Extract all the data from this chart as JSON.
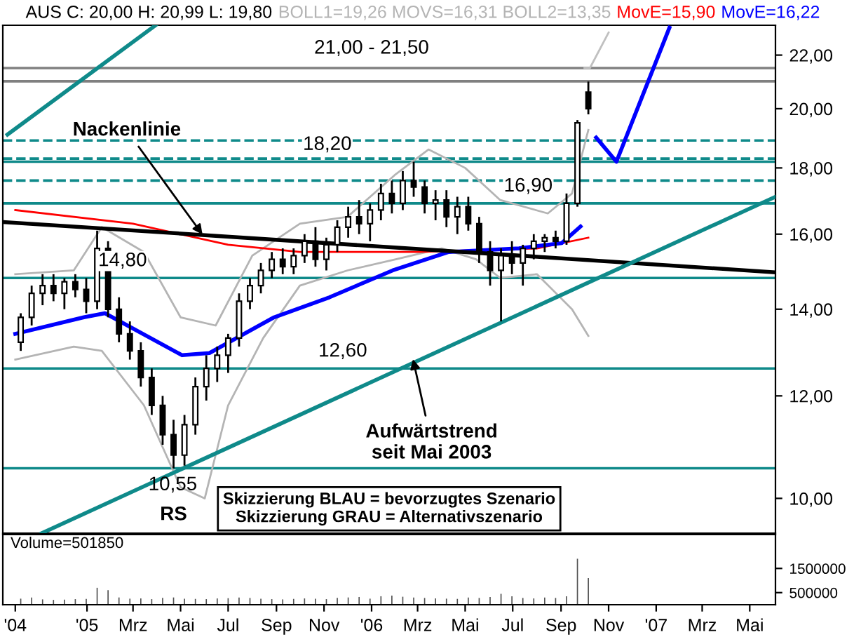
{
  "chart_data": [
    {
      "type": "candlestick",
      "log": "y",
      "legend": "top",
      "tick_labels": "y",
      "x": [
        "2004-10-08",
        "2004-10-22",
        "2004-11-05",
        "2004-11-19",
        "2004-12-03",
        "2004-12-17",
        "2004-12-31",
        "2005-01-14",
        "2005-01-28",
        "2005-02-11",
        "2005-02-25",
        "2005-03-11",
        "2005-03-25",
        "2005-04-08",
        "2005-04-22",
        "2005-05-06",
        "2005-05-20",
        "2005-06-03",
        "2005-06-17",
        "2005-07-01",
        "2005-07-15",
        "2005-07-29",
        "2005-08-12",
        "2005-08-26",
        "2005-09-09",
        "2005-09-23",
        "2005-10-07",
        "2005-10-21",
        "2005-11-04",
        "2005-11-18",
        "2005-12-02",
        "2005-12-16",
        "2005-12-30",
        "2006-01-13",
        "2006-01-27",
        "2006-02-10",
        "2006-02-24",
        "2006-03-10",
        "2006-03-24",
        "2006-04-07",
        "2006-04-21",
        "2006-05-05",
        "2006-05-19",
        "2006-06-02",
        "2006-06-16",
        "2006-06-30",
        "2006-07-14",
        "2006-07-28",
        "2006-08-11",
        "2006-08-25",
        "2006-09-08",
        "2006-09-22",
        "2006-10-06"
      ],
      "ohlc": [
        [
          13.2,
          13.9,
          13.0,
          13.8
        ],
        [
          13.8,
          14.6,
          13.6,
          14.4
        ],
        [
          14.4,
          14.9,
          14.1,
          14.6
        ],
        [
          14.6,
          14.9,
          14.2,
          14.4
        ],
        [
          14.4,
          14.8,
          14.0,
          14.7
        ],
        [
          14.7,
          14.9,
          14.3,
          14.5
        ],
        [
          14.5,
          14.8,
          13.9,
          14.2
        ],
        [
          14.2,
          16.1,
          14.0,
          15.6
        ],
        [
          15.6,
          15.8,
          13.8,
          14.0
        ],
        [
          14.0,
          14.3,
          13.2,
          13.4
        ],
        [
          13.4,
          13.7,
          12.8,
          13.0
        ],
        [
          13.0,
          13.2,
          12.2,
          12.4
        ],
        [
          12.4,
          12.6,
          11.6,
          11.8
        ],
        [
          11.8,
          12.0,
          11.0,
          11.2
        ],
        [
          11.2,
          11.5,
          10.55,
          10.8
        ],
        [
          10.8,
          11.6,
          10.6,
          11.4
        ],
        [
          11.4,
          12.4,
          11.2,
          12.2
        ],
        [
          12.2,
          12.9,
          11.9,
          12.6
        ],
        [
          12.6,
          13.1,
          12.3,
          12.9
        ],
        [
          12.9,
          13.4,
          12.5,
          13.3
        ],
        [
          13.3,
          14.4,
          13.1,
          14.2
        ],
        [
          14.2,
          14.8,
          14.0,
          14.6
        ],
        [
          14.6,
          15.2,
          14.4,
          15.0
        ],
        [
          15.0,
          15.5,
          14.8,
          15.3
        ],
        [
          15.3,
          15.6,
          14.9,
          15.1
        ],
        [
          15.1,
          15.6,
          14.9,
          15.4
        ],
        [
          15.4,
          16.0,
          15.2,
          15.8
        ],
        [
          15.8,
          16.2,
          15.1,
          15.3
        ],
        [
          15.3,
          15.9,
          15.0,
          15.7
        ],
        [
          15.7,
          16.4,
          15.5,
          16.2
        ],
        [
          16.2,
          16.8,
          15.9,
          16.5
        ],
        [
          16.5,
          17.0,
          16.0,
          16.3
        ],
        [
          16.3,
          16.9,
          15.8,
          16.7
        ],
        [
          16.7,
          17.5,
          16.4,
          17.2
        ],
        [
          17.2,
          17.6,
          16.6,
          16.9
        ],
        [
          16.9,
          17.9,
          16.7,
          17.6
        ],
        [
          17.6,
          18.2,
          17.1,
          17.4
        ],
        [
          17.4,
          17.6,
          16.6,
          16.9
        ],
        [
          16.9,
          17.3,
          16.4,
          17.0
        ],
        [
          17.0,
          17.3,
          16.2,
          16.5
        ],
        [
          16.5,
          17.1,
          16.0,
          16.8
        ],
        [
          16.8,
          17.1,
          16.1,
          16.3
        ],
        [
          16.3,
          16.5,
          15.2,
          15.5
        ],
        [
          15.5,
          15.8,
          14.6,
          15.0
        ],
        [
          15.0,
          15.6,
          13.7,
          15.4
        ],
        [
          15.4,
          15.8,
          14.9,
          15.2
        ],
        [
          15.2,
          15.7,
          14.6,
          15.6
        ],
        [
          15.6,
          16.0,
          15.3,
          15.8
        ],
        [
          15.8,
          16.0,
          15.5,
          15.9
        ],
        [
          15.9,
          16.1,
          15.6,
          15.8
        ],
        [
          15.8,
          17.2,
          15.7,
          16.9
        ],
        [
          16.9,
          19.6,
          16.8,
          19.5
        ],
        [
          20.6,
          20.99,
          19.8,
          20.0
        ]
      ],
      "series": [
        {
          "type": "line",
          "name": "BOLL1=19,26 MOVS=16,31 BOLL2=13,35",
          "color": "#b4b4b4",
          "x": [
            "2004-10-01",
            "2004-12-15",
            "2005-01-20",
            "2005-03-15",
            "2005-05-01",
            "2005-06-15",
            "2005-08-01",
            "2005-10-01",
            "2005-12-01",
            "2006-02-01",
            "2006-03-15",
            "2006-05-01",
            "2006-06-15",
            "2006-08-15",
            "2006-09-15",
            "2006-10-06"
          ],
          "values": [
            14.9,
            15.0,
            16.2,
            15.5,
            13.8,
            13.6,
            15.4,
            16.3,
            16.5,
            17.8,
            18.6,
            18.0,
            17.0,
            16.6,
            17.2,
            19.26
          ]
        },
        {
          "type": "line",
          "color": "#b4b4b4",
          "x": [
            "2004-10-01",
            "2004-12-15",
            "2005-01-20",
            "2005-03-15",
            "2005-05-01",
            "2005-06-01",
            "2005-07-01",
            "2005-08-15",
            "2005-10-01",
            "2005-12-01",
            "2006-02-01",
            "2006-04-01",
            "2006-05-15",
            "2006-06-15",
            "2006-08-01",
            "2006-09-15",
            "2006-10-06"
          ],
          "values": [
            12.8,
            13.1,
            13.0,
            11.8,
            10.2,
            10.0,
            11.8,
            13.3,
            14.6,
            15.0,
            15.3,
            15.6,
            15.3,
            14.8,
            14.9,
            14.0,
            13.35
          ]
        },
        {
          "type": "line",
          "name": "MovE=15,90",
          "color": "#ff0000",
          "x": [
            "2004-10-01",
            "2005-03-01",
            "2005-07-01",
            "2005-10-01",
            "2006-03-01",
            "2006-08-01",
            "2006-10-06"
          ],
          "values": [
            16.7,
            16.3,
            15.7,
            15.5,
            15.5,
            15.6,
            15.9
          ]
        },
        {
          "type": "line",
          "name": "MovE=16,22",
          "color": "#0000ff",
          "x": [
            "2004-10-01",
            "2004-12-28",
            "2005-01-24",
            "2005-05-03",
            "2005-06-07",
            "2005-08-29",
            "2005-11-08",
            "2006-01-28",
            "2006-04-10",
            "2006-07-09",
            "2006-09-02",
            "2006-09-26"
          ],
          "values": [
            13.4,
            13.8,
            13.9,
            12.9,
            12.95,
            13.8,
            14.3,
            15.0,
            15.5,
            15.6,
            15.75,
            16.22
          ]
        },
        {
          "type": "line",
          "color": "#000000",
          "x": [
            "2004-09-15",
            "2007-06-03"
          ],
          "values": [
            16.35,
            14.95
          ]
        },
        {
          "type": "line",
          "color": "#0f8a8a",
          "x": [
            "2004-11-04",
            "2007-06-03"
          ],
          "values": [
            9.4,
            17.1
          ]
        },
        {
          "type": "line",
          "color": "#0f8a8a",
          "x": [
            "2004-09-21",
            "2005-03-30"
          ],
          "values": [
            19.1,
            23.2
          ]
        },
        {
          "type": "line",
          "color": "#0000ff",
          "x": [
            "2006-10-16",
            "2006-11-11",
            "2007-01-18"
          ],
          "values": [
            19.0,
            18.2,
            23.1
          ]
        },
        {
          "type": "line",
          "color": "#c0c0c0",
          "x": [
            "2006-10-01",
            "2006-10-08",
            "2006-11-01"
          ],
          "values": [
            21.5,
            21.5,
            22.9
          ]
        }
      ],
      "ref_lines": [
        {
          "axis": "y",
          "value": 21.0,
          "label": null,
          "color": "#808080"
        },
        {
          "axis": "y",
          "value": 21.5,
          "label": null,
          "color": "#808080"
        },
        {
          "axis": "y",
          "value": 18.9,
          "label": null,
          "color": "#0f8a8a",
          "line_style": "dashed"
        },
        {
          "axis": "y",
          "value": 18.3,
          "label": null,
          "color": "#0f8a8a",
          "line_style": "dashed"
        },
        {
          "axis": "y",
          "value": 17.6,
          "label": null,
          "color": "#0f8a8a",
          "line_style": "dashed"
        },
        {
          "axis": "y",
          "value": 18.2,
          "label": "18,20",
          "color": "#0f8a8a"
        },
        {
          "axis": "y",
          "value": 16.9,
          "label": "16,90",
          "color": "#0f8a8a"
        },
        {
          "axis": "y",
          "value": 14.8,
          "label": "14,80",
          "color": "#0f8a8a"
        },
        {
          "axis": "y",
          "value": 12.6,
          "label": "12,60",
          "color": "#0f8a8a"
        },
        {
          "axis": "y",
          "value": 10.55,
          "label": "10,55",
          "color": "#0f8a8a"
        }
      ],
      "annotations": [
        "AUS C: 20,00 H: 20,99 L: 19,80",
        {
          "text": "Nackenlinie",
          "x": "2005-06-01",
          "y": 15.9
        },
        {
          "text": "Aufwärtstrend\nseit Mai 2003",
          "x": "2006-02-22",
          "y": 12.9
        },
        {
          "text": "RS",
          "x": "2005-04-22",
          "y": 10.55
        },
        "Skizzierung BLAU = bevorzugtes Szenario",
        "Skizzierung GRAU = Alternativszenario",
        {
          "text": "21,00 - 21,50",
          "x": "2006-01-01",
          "y": 21.5
        }
      ],
      "xlim": [
        "2004-09-15",
        "2007-06-03"
      ],
      "ylim": [
        9.4,
        23.2
      ],
      "yticks": [
        {
          "value": 10,
          "label": "10,00"
        },
        {
          "value": 12,
          "label": "12,00"
        },
        {
          "value": 14,
          "label": "14,00"
        },
        {
          "value": 16,
          "label": "16,00"
        },
        {
          "value": 18,
          "label": "18,00"
        },
        {
          "value": 20,
          "label": "20,00"
        },
        {
          "value": 22,
          "label": "22,00"
        }
      ]
    },
    {
      "type": "bar",
      "title": "Volume=501850",
      "color": "#505050",
      "x": [
        "2004-10-08",
        "2004-10-22",
        "2004-11-05",
        "2004-11-19",
        "2004-12-03",
        "2004-12-17",
        "2004-12-31",
        "2005-01-14",
        "2005-01-28",
        "2005-02-11",
        "2005-02-25",
        "2005-03-11",
        "2005-03-25",
        "2005-04-08",
        "2005-04-22",
        "2005-05-06",
        "2005-05-20",
        "2005-06-03",
        "2005-06-17",
        "2005-07-01",
        "2005-07-15",
        "2005-07-29",
        "2005-08-12",
        "2005-08-26",
        "2005-09-09",
        "2005-09-23",
        "2005-10-07",
        "2005-10-21",
        "2005-11-04",
        "2005-11-18",
        "2005-12-02",
        "2005-12-16",
        "2005-12-30",
        "2006-01-13",
        "2006-01-27",
        "2006-02-10",
        "2006-02-24",
        "2006-03-10",
        "2006-03-24",
        "2006-04-07",
        "2006-04-21",
        "2006-05-05",
        "2006-05-19",
        "2006-06-02",
        "2006-06-16",
        "2006-06-30",
        "2006-07-14",
        "2006-07-28",
        "2006-08-11",
        "2006-08-25",
        "2006-09-08",
        "2006-09-22",
        "2006-10-06"
      ],
      "values": [
        250000,
        300000,
        220000,
        200000,
        210000,
        230000,
        240000,
        700000,
        600000,
        300000,
        250000,
        260000,
        230000,
        280000,
        300000,
        250000,
        240000,
        230000,
        260000,
        270000,
        300000,
        280000,
        250000,
        230000,
        220000,
        240000,
        260000,
        250000,
        230000,
        280000,
        300000,
        320000,
        250000,
        350000,
        380000,
        330000,
        300000,
        280000,
        260000,
        250000,
        240000,
        300000,
        280000,
        320000,
        450000,
        350000,
        280000,
        260000,
        300000,
        280000,
        350000,
        1900000,
        1100000
      ],
      "xlim": [
        "2004-09-15",
        "2007-06-03"
      ],
      "ylim": [
        0,
        2900000
      ],
      "yticks": [
        500000,
        1500000
      ],
      "xticks": [
        {
          "value": "2004-10-01",
          "label": "'04"
        },
        {
          "value": "2005-01-01",
          "label": "'05"
        },
        {
          "value": "2005-03-01",
          "label": "Mrz"
        },
        {
          "value": "2005-05-01",
          "label": "Mai"
        },
        {
          "value": "2005-07-01",
          "label": "Jul"
        },
        {
          "value": "2005-09-01",
          "label": "Sep"
        },
        {
          "value": "2005-11-01",
          "label": "Nov"
        },
        {
          "value": "2006-01-01",
          "label": "'06"
        },
        {
          "value": "2006-03-01",
          "label": "Mrz"
        },
        {
          "value": "2006-05-01",
          "label": "Mai"
        },
        {
          "value": "2006-07-01",
          "label": "Jul"
        },
        {
          "value": "2006-09-01",
          "label": "Sep"
        },
        {
          "value": "2006-11-01",
          "label": "Nov"
        },
        {
          "value": "2007-01-01",
          "label": "'07"
        },
        {
          "value": "2007-03-01",
          "label": "Mrz"
        },
        {
          "value": "2007-05-01",
          "label": "Mai"
        }
      ]
    }
  ]
}
